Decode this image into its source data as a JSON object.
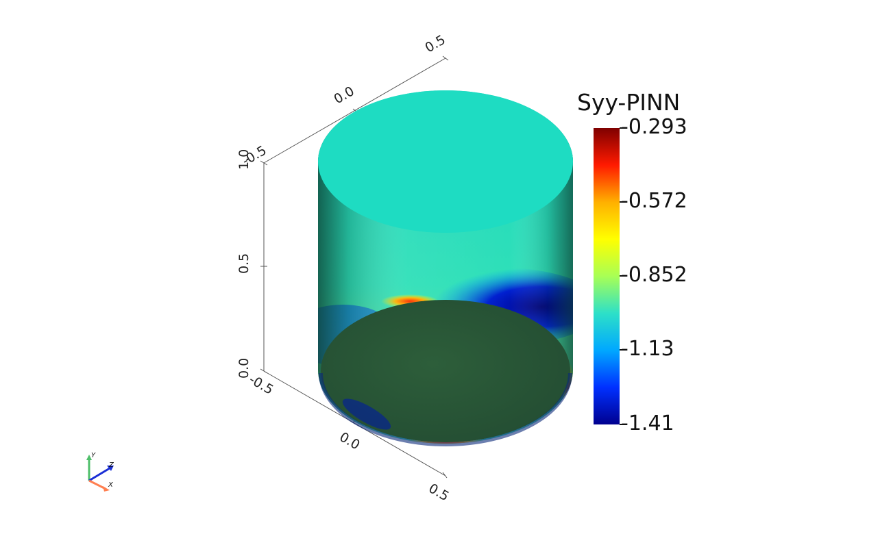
{
  "colorbar": {
    "title": "Syy-PINN",
    "labels": [
      "-0.293",
      "-0.572",
      "-0.852",
      "-1.13",
      "-1.41"
    ],
    "colormap": [
      "#7f0000",
      "#ff1a00",
      "#ffb000",
      "#ffff00",
      "#a8ff55",
      "#2de0c8",
      "#00a8ff",
      "#0030ff",
      "#00008f"
    ]
  },
  "axes": {
    "vertical_ticks": [
      "1.0",
      "0.5",
      "0.0"
    ],
    "top_edge_ticks": [
      "-0.5",
      "0.0",
      "0.5"
    ],
    "bottom_edge_ticks": [
      "-0.5",
      "0.0",
      "0.5"
    ]
  },
  "orientation_triad": {
    "y": "Y",
    "z": "Z",
    "x": "X",
    "colors": {
      "y": "#4fbf6a",
      "z": "#1a2fd6",
      "x": "#ff7f50"
    }
  },
  "surface_colors": {
    "side": "#1ee0c0",
    "side_lower": "#33d6a8",
    "bottom_cap": "#2b5a38",
    "blue_band": "#0000a0",
    "hot_spot": "#ff3300"
  }
}
